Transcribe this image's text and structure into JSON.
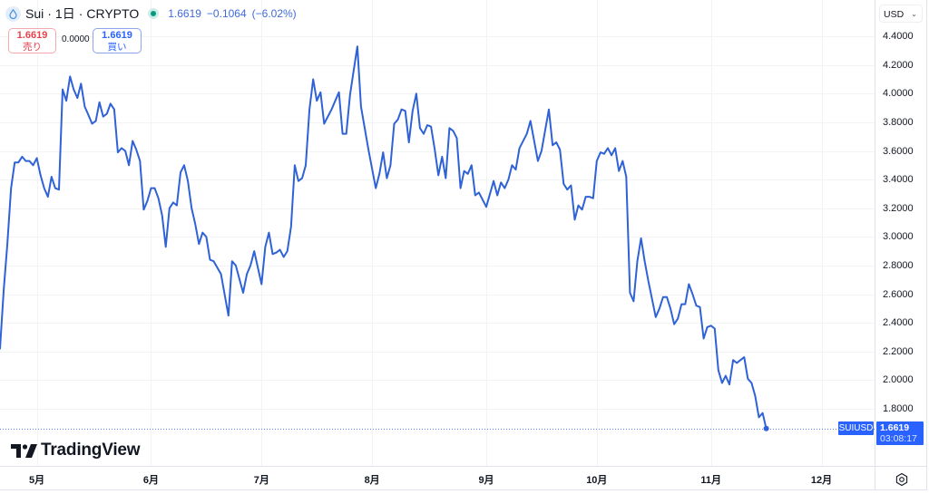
{
  "header": {
    "symbol": "Sui",
    "separator": "·",
    "interval": "1日",
    "exchange": "CRYPTO",
    "price": "1.6619",
    "change": "−0.1064",
    "change_pct": "(−6.02%)",
    "icon": "sui-drop-icon",
    "status": "market-open-dot"
  },
  "trade": {
    "sell": {
      "price": "1.6619",
      "label": "売り"
    },
    "spread": "0.0000",
    "buy": {
      "price": "1.6619",
      "label": "買い"
    }
  },
  "price_axis": {
    "currency": "USD",
    "last_price": "1.6619",
    "countdown": "03:08:17",
    "symbol_tag": "SUIUSD"
  },
  "branding": {
    "logo_text": "TradingView"
  },
  "colors": {
    "line": "#2f62d6",
    "accent": "#2962ff",
    "sell": "#e8414c",
    "grid": "#f2f3f5",
    "status_green": "#089981"
  },
  "chart_data": {
    "type": "line",
    "title": "Sui · 1日 · CRYPTO",
    "xlabel": "",
    "ylabel": "USD",
    "grid": true,
    "legend_position": "top-left",
    "xlim": [
      0,
      237.4
    ],
    "ylim": [
      1.401,
      4.654
    ],
    "x_ticks": [
      {
        "day": 10,
        "label": "5月"
      },
      {
        "day": 41,
        "label": "6月"
      },
      {
        "day": 71,
        "label": "7月"
      },
      {
        "day": 101,
        "label": "8月"
      },
      {
        "day": 132,
        "label": "9月"
      },
      {
        "day": 162,
        "label": "10月"
      },
      {
        "day": 193,
        "label": "11月"
      },
      {
        "day": 223,
        "label": "12月"
      }
    ],
    "y_ticks": [
      {
        "value": 4.4,
        "label": "4.4000"
      },
      {
        "value": 4.2,
        "label": "4.2000"
      },
      {
        "value": 4.0,
        "label": "4.0000"
      },
      {
        "value": 3.8,
        "label": "3.8000"
      },
      {
        "value": 3.6,
        "label": "3.6000"
      },
      {
        "value": 3.4,
        "label": "3.4000"
      },
      {
        "value": 3.2,
        "label": "3.2000"
      },
      {
        "value": 3.0,
        "label": "3.0000"
      },
      {
        "value": 2.8,
        "label": "2.8000"
      },
      {
        "value": 2.6,
        "label": "2.6000"
      },
      {
        "value": 2.4,
        "label": "2.4000"
      },
      {
        "value": 2.2,
        "label": "2.2000"
      },
      {
        "value": 2.0,
        "label": "2.0000"
      },
      {
        "value": 1.8,
        "label": "1.8000"
      }
    ],
    "last_value": 1.6619,
    "series": [
      {
        "name": "SUIUSD",
        "points": [
          [
            0,
            2.22
          ],
          [
            1,
            2.63
          ],
          [
            2,
            2.95
          ],
          [
            3,
            3.34
          ],
          [
            4,
            3.52
          ],
          [
            5,
            3.52
          ],
          [
            6,
            3.56
          ],
          [
            7,
            3.53
          ],
          [
            8,
            3.53
          ],
          [
            9,
            3.5
          ],
          [
            10,
            3.55
          ],
          [
            11,
            3.43
          ],
          [
            12,
            3.34
          ],
          [
            13,
            3.28
          ],
          [
            14,
            3.42
          ],
          [
            15,
            3.34
          ],
          [
            16,
            3.33
          ],
          [
            17,
            4.03
          ],
          [
            18,
            3.95
          ],
          [
            19,
            4.12
          ],
          [
            20,
            4.03
          ],
          [
            21,
            3.97
          ],
          [
            22,
            4.07
          ],
          [
            23,
            3.91
          ],
          [
            24,
            3.85
          ],
          [
            25,
            3.79
          ],
          [
            26,
            3.81
          ],
          [
            27,
            3.94
          ],
          [
            28,
            3.84
          ],
          [
            29,
            3.86
          ],
          [
            30,
            3.93
          ],
          [
            31,
            3.89
          ],
          [
            32,
            3.59
          ],
          [
            33,
            3.62
          ],
          [
            34,
            3.6
          ],
          [
            35,
            3.5
          ],
          [
            36,
            3.67
          ],
          [
            37,
            3.61
          ],
          [
            38,
            3.53
          ],
          [
            39,
            3.19
          ],
          [
            40,
            3.25
          ],
          [
            41,
            3.34
          ],
          [
            42,
            3.34
          ],
          [
            43,
            3.27
          ],
          [
            44,
            3.15
          ],
          [
            45,
            2.93
          ],
          [
            46,
            3.2
          ],
          [
            47,
            3.24
          ],
          [
            48,
            3.22
          ],
          [
            49,
            3.45
          ],
          [
            50,
            3.5
          ],
          [
            51,
            3.39
          ],
          [
            52,
            3.2
          ],
          [
            53,
            3.09
          ],
          [
            54,
            2.95
          ],
          [
            55,
            3.03
          ],
          [
            56,
            3.0
          ],
          [
            57,
            2.84
          ],
          [
            58,
            2.83
          ],
          [
            60,
            2.74
          ],
          [
            62,
            2.45
          ],
          [
            63,
            2.83
          ],
          [
            64,
            2.8
          ],
          [
            66,
            2.61
          ],
          [
            67,
            2.74
          ],
          [
            68,
            2.8
          ],
          [
            69,
            2.9
          ],
          [
            71,
            2.67
          ],
          [
            72,
            2.93
          ],
          [
            73,
            3.03
          ],
          [
            74,
            2.88
          ],
          [
            75,
            2.89
          ],
          [
            76,
            2.91
          ],
          [
            77,
            2.86
          ],
          [
            78,
            2.9
          ],
          [
            79,
            3.07
          ],
          [
            80,
            3.5
          ],
          [
            81,
            3.39
          ],
          [
            82,
            3.41
          ],
          [
            83,
            3.5
          ],
          [
            84,
            3.89
          ],
          [
            85,
            4.1
          ],
          [
            86,
            3.95
          ],
          [
            87,
            4.01
          ],
          [
            88,
            3.79
          ],
          [
            89,
            3.84
          ],
          [
            90,
            3.89
          ],
          [
            91,
            3.95
          ],
          [
            92,
            4.01
          ],
          [
            93,
            3.72
          ],
          [
            94,
            3.72
          ],
          [
            95,
            3.99
          ],
          [
            96,
            4.16
          ],
          [
            97,
            4.33
          ],
          [
            98,
            3.91
          ],
          [
            99,
            3.76
          ],
          [
            100,
            3.61
          ],
          [
            102,
            3.34
          ],
          [
            103,
            3.44
          ],
          [
            104,
            3.59
          ],
          [
            105,
            3.41
          ],
          [
            106,
            3.5
          ],
          [
            107,
            3.79
          ],
          [
            108,
            3.82
          ],
          [
            109,
            3.89
          ],
          [
            110,
            3.88
          ],
          [
            111,
            3.66
          ],
          [
            112,
            3.88
          ],
          [
            113,
            4.0
          ],
          [
            114,
            3.76
          ],
          [
            115,
            3.72
          ],
          [
            116,
            3.78
          ],
          [
            117,
            3.77
          ],
          [
            118,
            3.61
          ],
          [
            119,
            3.43
          ],
          [
            120,
            3.56
          ],
          [
            121,
            3.41
          ],
          [
            122,
            3.76
          ],
          [
            123,
            3.74
          ],
          [
            124,
            3.69
          ],
          [
            125,
            3.34
          ],
          [
            126,
            3.46
          ],
          [
            127,
            3.44
          ],
          [
            128,
            3.5
          ],
          [
            129,
            3.29
          ],
          [
            130,
            3.31
          ],
          [
            132,
            3.21
          ],
          [
            134,
            3.39
          ],
          [
            135,
            3.29
          ],
          [
            136,
            3.38
          ],
          [
            137,
            3.34
          ],
          [
            138,
            3.4
          ],
          [
            139,
            3.5
          ],
          [
            140,
            3.47
          ],
          [
            141,
            3.62
          ],
          [
            143,
            3.72
          ],
          [
            144,
            3.81
          ],
          [
            146,
            3.53
          ],
          [
            147,
            3.6
          ],
          [
            149,
            3.89
          ],
          [
            150,
            3.64
          ],
          [
            151,
            3.66
          ],
          [
            152,
            3.61
          ],
          [
            153,
            3.37
          ],
          [
            154,
            3.33
          ],
          [
            155,
            3.36
          ],
          [
            156,
            3.12
          ],
          [
            157,
            3.22
          ],
          [
            158,
            3.19
          ],
          [
            159,
            3.28
          ],
          [
            160,
            3.28
          ],
          [
            161,
            3.27
          ],
          [
            162,
            3.53
          ],
          [
            163,
            3.59
          ],
          [
            164,
            3.58
          ],
          [
            165,
            3.62
          ],
          [
            166,
            3.57
          ],
          [
            167,
            3.62
          ],
          [
            168,
            3.46
          ],
          [
            169,
            3.53
          ],
          [
            170,
            3.42
          ],
          [
            171,
            2.61
          ],
          [
            172,
            2.55
          ],
          [
            173,
            2.83
          ],
          [
            174,
            2.99
          ],
          [
            175,
            2.83
          ],
          [
            176,
            2.69
          ],
          [
            178,
            2.44
          ],
          [
            179,
            2.5
          ],
          [
            180,
            2.58
          ],
          [
            181,
            2.58
          ],
          [
            182,
            2.5
          ],
          [
            183,
            2.39
          ],
          [
            184,
            2.43
          ],
          [
            185,
            2.53
          ],
          [
            186,
            2.53
          ],
          [
            187,
            2.67
          ],
          [
            188,
            2.6
          ],
          [
            189,
            2.52
          ],
          [
            190,
            2.51
          ],
          [
            191,
            2.29
          ],
          [
            192,
            2.37
          ],
          [
            193,
            2.38
          ],
          [
            194,
            2.36
          ],
          [
            195,
            2.07
          ],
          [
            196,
            1.98
          ],
          [
            197,
            2.03
          ],
          [
            198,
            1.97
          ],
          [
            199,
            2.14
          ],
          [
            200,
            2.12
          ],
          [
            201,
            2.14
          ],
          [
            202,
            2.16
          ],
          [
            203,
            2.01
          ],
          [
            204,
            1.98
          ],
          [
            205,
            1.89
          ],
          [
            206,
            1.74
          ],
          [
            207,
            1.77
          ],
          [
            208,
            1.6619
          ]
        ]
      }
    ]
  }
}
